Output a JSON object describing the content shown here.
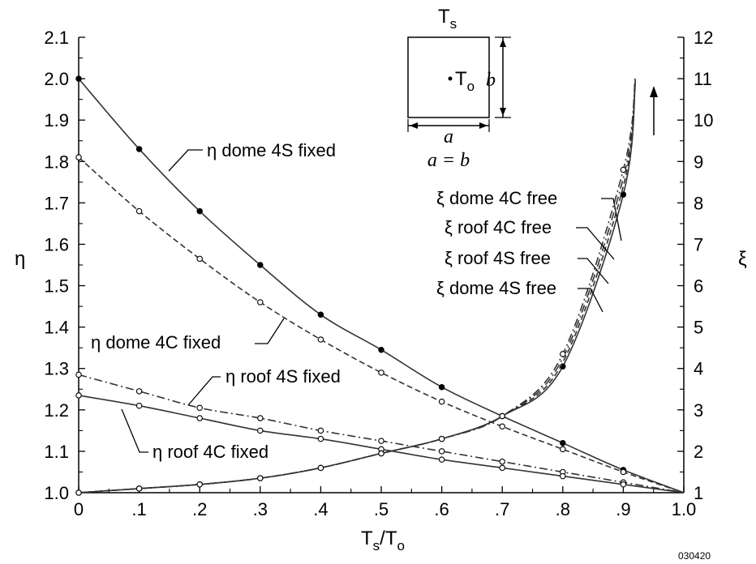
{
  "chart_data": {
    "type": "line",
    "x_label": "T",
    "x_label_sub": "s",
    "x_label_sep": "/T",
    "x_label_sub2": "o",
    "y_left_label": "η",
    "y_right_label": "ξ",
    "x_range": [
      0,
      1.0
    ],
    "y_left_range": [
      1.0,
      2.1
    ],
    "y_right_range": [
      1,
      12
    ],
    "x_ticks": [
      "0",
      ".1",
      ".2",
      ".3",
      ".4",
      ".5",
      ".6",
      ".7",
      ".8",
      ".9",
      "1.0"
    ],
    "x_tick_values": [
      0,
      0.1,
      0.2,
      0.3,
      0.4,
      0.5,
      0.6,
      0.7,
      0.8,
      0.9,
      1.0
    ],
    "y_left_ticks": [
      "1.0",
      "1.1",
      "1.2",
      "1.3",
      "1.4",
      "1.5",
      "1.6",
      "1.7",
      "1.8",
      "1.9",
      "2.0",
      "2.1"
    ],
    "y_left_tick_values": [
      1.0,
      1.1,
      1.2,
      1.3,
      1.4,
      1.5,
      1.6,
      1.7,
      1.8,
      1.9,
      2.0,
      2.1
    ],
    "y_right_ticks": [
      "1",
      "2",
      "3",
      "4",
      "5",
      "6",
      "7",
      "8",
      "9",
      "10",
      "11",
      "12"
    ],
    "y_right_tick_values": [
      1,
      2,
      3,
      4,
      5,
      6,
      7,
      8,
      9,
      10,
      11,
      12
    ],
    "series": [
      {
        "name": "η dome 4S fixed",
        "axis": "left",
        "style": "solid",
        "marker": "filled",
        "x": [
          0,
          0.1,
          0.2,
          0.3,
          0.4,
          0.5,
          0.6,
          0.7,
          0.8,
          0.9,
          1.0
        ],
        "y": [
          2.0,
          1.83,
          1.68,
          1.55,
          1.43,
          1.345,
          1.255,
          1.185,
          1.12,
          1.055,
          1.0
        ]
      },
      {
        "name": "η dome 4C fixed",
        "axis": "left",
        "style": "dashed",
        "marker": "open",
        "x": [
          0,
          0.1,
          0.2,
          0.3,
          0.4,
          0.5,
          0.6,
          0.7,
          0.8,
          0.9,
          1.0
        ],
        "y": [
          1.81,
          1.68,
          1.565,
          1.46,
          1.37,
          1.29,
          1.22,
          1.16,
          1.105,
          1.05,
          1.0
        ]
      },
      {
        "name": "η roof 4S fixed",
        "axis": "left",
        "style": "dashdot",
        "marker": "open",
        "x": [
          0,
          0.1,
          0.2,
          0.3,
          0.4,
          0.5,
          0.6,
          0.7,
          0.8,
          0.9,
          1.0
        ],
        "y": [
          1.285,
          1.245,
          1.205,
          1.18,
          1.15,
          1.125,
          1.1,
          1.075,
          1.05,
          1.025,
          1.0
        ]
      },
      {
        "name": "η roof 4C fixed",
        "axis": "left",
        "style": "solid",
        "marker": "open",
        "x": [
          0,
          0.1,
          0.2,
          0.3,
          0.4,
          0.5,
          0.6,
          0.7,
          0.8,
          0.9,
          1.0
        ],
        "y": [
          1.235,
          1.21,
          1.18,
          1.15,
          1.13,
          1.105,
          1.08,
          1.06,
          1.04,
          1.02,
          1.0
        ]
      },
      {
        "name": "ξ dome 4S free",
        "axis": "right",
        "style": "solid",
        "marker": "filled",
        "x": [
          0,
          0.1,
          0.2,
          0.3,
          0.4,
          0.5,
          0.6,
          0.7,
          0.8,
          0.9,
          0.92
        ],
        "y": [
          1.0,
          1.1,
          1.2,
          1.35,
          1.6,
          1.95,
          2.3,
          2.85,
          4.05,
          8.2,
          10.9
        ]
      },
      {
        "name": "ξ roof 4S free",
        "axis": "right",
        "style": "dashed",
        "marker": "none",
        "x": [
          0,
          0.1,
          0.2,
          0.3,
          0.4,
          0.5,
          0.6,
          0.7,
          0.8,
          0.9,
          0.92
        ],
        "y": [
          1.0,
          1.1,
          1.2,
          1.35,
          1.6,
          1.95,
          2.3,
          2.85,
          4.15,
          8.4,
          10.95
        ]
      },
      {
        "name": "ξ roof 4C free",
        "axis": "right",
        "style": "dashdot",
        "marker": "none",
        "x": [
          0,
          0.1,
          0.2,
          0.3,
          0.4,
          0.5,
          0.6,
          0.7,
          0.8,
          0.9,
          0.92
        ],
        "y": [
          1.0,
          1.1,
          1.2,
          1.35,
          1.6,
          1.95,
          2.3,
          2.85,
          4.25,
          8.6,
          11.0
        ]
      },
      {
        "name": "ξ dome 4C free",
        "axis": "right",
        "style": "dashdot",
        "marker": "open",
        "x": [
          0,
          0.1,
          0.2,
          0.3,
          0.4,
          0.5,
          0.6,
          0.7,
          0.8,
          0.9,
          0.92
        ],
        "y": [
          1.0,
          1.1,
          1.2,
          1.35,
          1.6,
          1.95,
          2.3,
          2.85,
          4.35,
          8.8,
          11.05
        ]
      }
    ],
    "labels": {
      "eta_dome_4s": "η dome 4S fixed",
      "eta_dome_4c": "η dome 4C fixed",
      "eta_roof_4s": "η roof 4S fixed",
      "eta_roof_4c": "η roof 4C fixed",
      "xi_dome_4c": "ξ dome 4C free",
      "xi_roof_4c": "ξ roof 4C free",
      "xi_roof_4s": "ξ roof 4S free",
      "xi_dome_4s": "ξ dome 4S free"
    },
    "inset": {
      "top_label": "T",
      "top_label_sub": "s",
      "center_label": "T",
      "center_label_sub": "o",
      "side_label": "b",
      "bottom_label": "a",
      "equation": "a = b"
    },
    "figure_number": "030420"
  }
}
